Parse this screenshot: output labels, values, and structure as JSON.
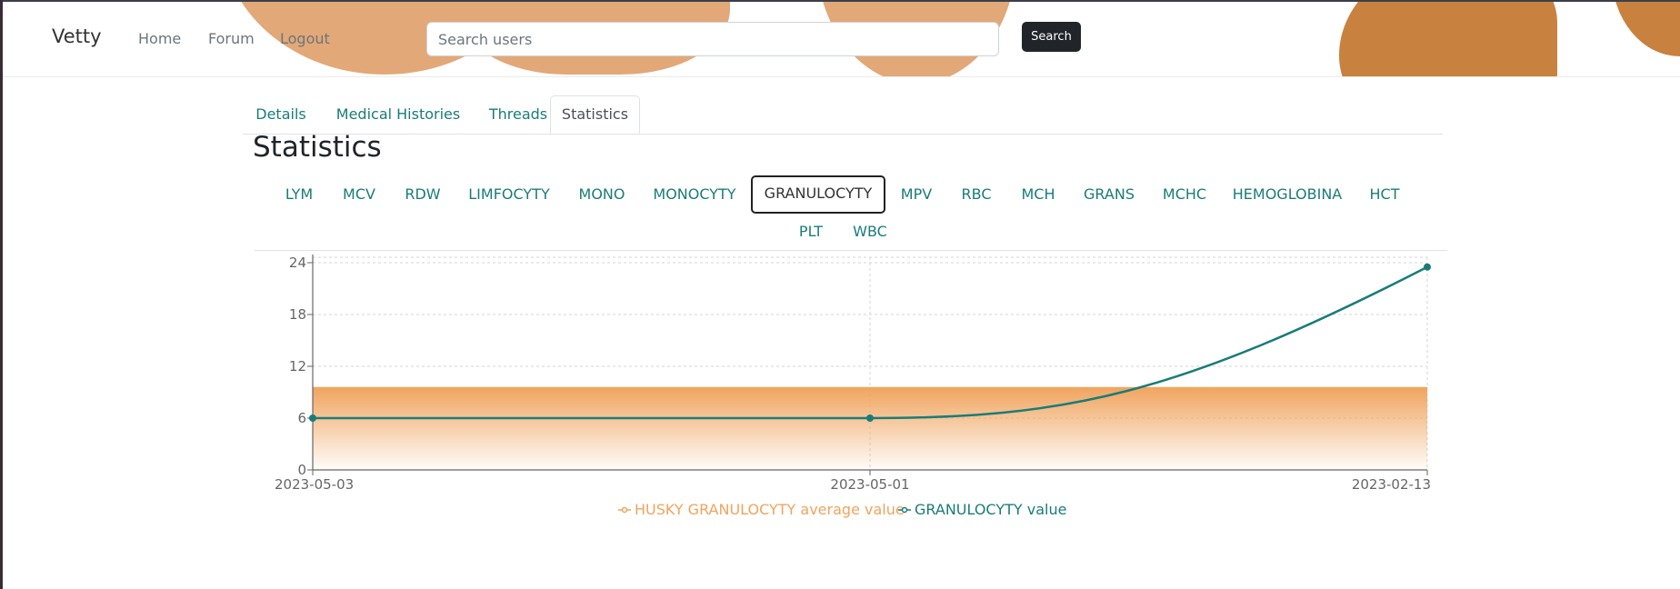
{
  "navbar": {
    "brand": "Vetty",
    "links": [
      "Home",
      "Forum",
      "Logout"
    ],
    "search_placeholder": "Search users",
    "search_value": "",
    "search_button": "Search"
  },
  "tabs": [
    {
      "label": "Details",
      "active": false
    },
    {
      "label": "Medical Histories",
      "active": false
    },
    {
      "label": "Threads",
      "active": false
    },
    {
      "label": "Statistics",
      "active": true
    }
  ],
  "page_title": "Statistics",
  "metrics_row1": [
    "LYM",
    "MCV",
    "RDW",
    "LIMFOCYTY",
    "MONO",
    "MONOCYTY",
    "GRANULOCYTY",
    "MPV",
    "RBC",
    "MCH",
    "GRANS",
    "MCHC",
    "HEMOGLOBINA",
    "HCT"
  ],
  "metrics_row2": [
    "PLT",
    "WBC"
  ],
  "active_metric": "GRANULOCYTY",
  "colors": {
    "accent": "#1a7c78",
    "band": "#f0a45e",
    "blob_light": "#e2a878",
    "blob_dark": "#c8813f"
  },
  "chart_data": {
    "type": "line",
    "categories": [
      "2023-05-03",
      "2023-05-01",
      "2023-02-13"
    ],
    "ylim": [
      0,
      24
    ],
    "yticks": [
      "0",
      "6",
      "12",
      "18",
      "24"
    ],
    "series": [
      {
        "name": "GRANULOCYTY value",
        "values": [
          6,
          6,
          23.5
        ],
        "color": "#1a7c78"
      }
    ],
    "reference_band": {
      "name": "HUSKY GRANULOCYTY average value",
      "min": 0,
      "max": 9.6,
      "color": "#f0a45e"
    },
    "legend": "bottom-center",
    "grid": true
  }
}
